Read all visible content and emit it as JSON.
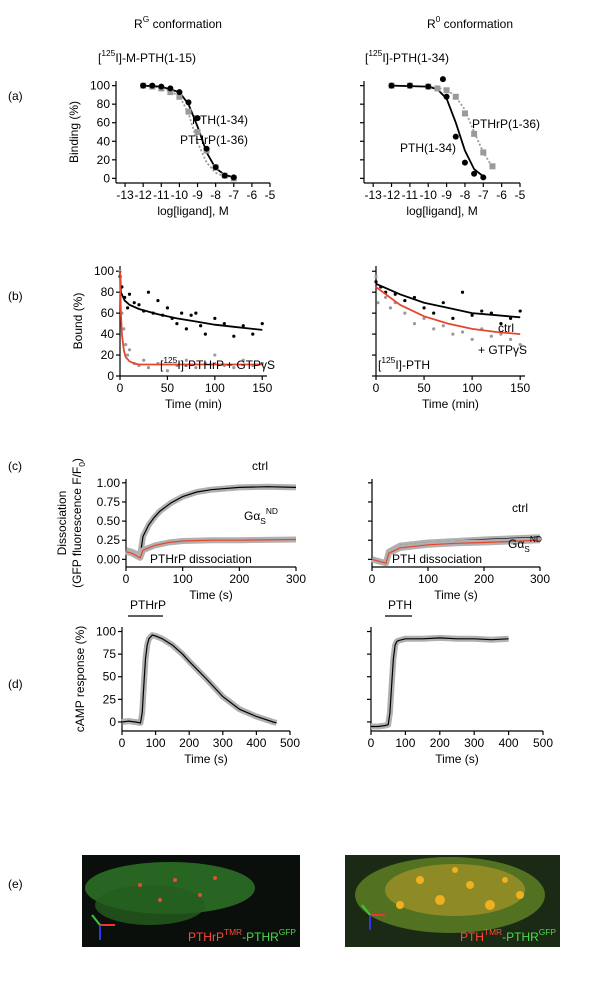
{
  "panel_labels": [
    "(a)",
    "(b)",
    "(c)",
    "(d)",
    "(e)"
  ],
  "column_titles": [
    [
      "R",
      "G",
      " conformation"
    ],
    [
      "R",
      "0",
      " conformation"
    ]
  ],
  "chart_data": [
    {
      "type": "scatter",
      "subtitle": [
        "[",
        "125",
        "I]-M-PTH(1-15)"
      ],
      "xlabel": "log[ligand], M",
      "ylabel": "Binding (%)",
      "xlim": [
        -13.5,
        -5
      ],
      "ylim": [
        -5,
        105
      ],
      "xticks": [
        -13,
        -12,
        -11,
        -10,
        -9,
        -8,
        -7,
        -6,
        -5
      ],
      "yticks": [
        0,
        20,
        40,
        60,
        80,
        100
      ],
      "annotations": [
        {
          "text": "PTH(1-34)",
          "color": "#000000"
        },
        {
          "text": "PTHrP(1-36)",
          "color": "#9a9a9a"
        }
      ],
      "series": [
        {
          "style": "dotted-line",
          "color": "#9a9a9a",
          "x": [
            -12,
            -11,
            -10,
            -9.5,
            -9,
            -8.5,
            -8,
            -7.5,
            -7
          ],
          "values": [
            100,
            98,
            89,
            70,
            39,
            17,
            6,
            2,
            1
          ]
        },
        {
          "style": "line",
          "color": "#000000",
          "x": [
            -12,
            -11,
            -10,
            -9.5,
            -9,
            -8.5,
            -8,
            -7.5,
            -7
          ],
          "values": [
            100,
            99,
            93,
            80,
            56,
            28,
            11,
            4,
            1
          ]
        },
        {
          "style": "squares",
          "color": "#9a9a9a",
          "x": [
            -12,
            -11.5,
            -11,
            -10.5,
            -10,
            -9.5,
            -9,
            -8.5,
            -8,
            -7.5,
            -7
          ],
          "values": [
            100,
            99,
            97,
            93,
            88,
            72,
            50,
            30,
            12,
            3,
            0
          ]
        },
        {
          "style": "circles",
          "color": "#000000",
          "x": [
            -12,
            -11.5,
            -11,
            -10.5,
            -10,
            -9.5,
            -9,
            -8.5,
            -8,
            -7.5,
            -7
          ],
          "values": [
            100,
            100,
            99,
            97,
            93,
            82,
            65,
            32,
            12,
            3,
            1
          ]
        }
      ]
    },
    {
      "type": "scatter",
      "subtitle": [
        "[",
        "125",
        "I]-PTH(1-34)"
      ],
      "xlabel": "log[ligand], M",
      "ytick_labels": false,
      "xlim": [
        -13.5,
        -5
      ],
      "ylim": [
        -5,
        105
      ],
      "xticks": [
        -13,
        -12,
        -11,
        -10,
        -9,
        -8,
        -7,
        -6,
        -5
      ],
      "yticks": [
        0,
        20,
        40,
        60,
        80,
        100
      ],
      "annotations": [
        {
          "text": "PTHrP(1-36)",
          "color": "#9a9a9a"
        },
        {
          "text": "PTH(1-34)",
          "color": "#000000"
        }
      ],
      "series": [
        {
          "style": "dotted-line",
          "color": "#9a9a9a",
          "x": [
            -12,
            -10,
            -9,
            -8.5,
            -8,
            -7.5,
            -7,
            -6.5
          ],
          "values": [
            100,
            99,
            96,
            88,
            74,
            50,
            28,
            12
          ]
        },
        {
          "style": "line",
          "color": "#000000",
          "x": [
            -12,
            -10,
            -9.5,
            -9,
            -8.5,
            -8,
            -7.5,
            -7
          ],
          "values": [
            100,
            99,
            96,
            86,
            60,
            30,
            10,
            2
          ]
        },
        {
          "style": "squares",
          "color": "#9a9a9a",
          "x": [
            -12,
            -11,
            -10,
            -9.5,
            -9,
            -8.5,
            -8,
            -7.5,
            -7,
            -6.5
          ],
          "values": [
            100,
            100,
            99,
            97,
            95,
            88,
            70,
            48,
            28,
            13
          ]
        },
        {
          "style": "circles",
          "color": "#000000",
          "x": [
            -12,
            -11,
            -10,
            -9.2,
            -9,
            -8.5,
            -8,
            -7.5,
            -7
          ],
          "values": [
            100,
            100,
            99,
            107,
            88,
            45,
            17,
            5,
            1
          ]
        }
      ]
    },
    {
      "type": "scatter",
      "xlabel": "Time (min)",
      "ylabel": "Bound (%)",
      "xlim": [
        0,
        155
      ],
      "ylim": [
        0,
        105
      ],
      "xticks": [
        0,
        50,
        100,
        150
      ],
      "yticks": [
        0,
        20,
        40,
        60,
        80,
        100
      ],
      "annotations": [
        {
          "text": [
            "[",
            "125",
            "I]-PTHrP"
          ],
          "color": "#000000"
        },
        {
          "text": "+ GTPγS",
          "color": "#9a9a9a"
        }
      ],
      "series": [
        {
          "style": "dots",
          "color": "#9a9a9a",
          "x": [
            0,
            2,
            4,
            6,
            8,
            10,
            15,
            20,
            25,
            30,
            40,
            50,
            60,
            70,
            80,
            90,
            100,
            110,
            120,
            130,
            140,
            150
          ],
          "values": [
            100,
            60,
            45,
            30,
            20,
            25,
            12,
            10,
            15,
            8,
            12,
            5,
            10,
            15,
            8,
            12,
            20,
            10,
            8,
            15,
            10,
            12
          ]
        },
        {
          "style": "dots",
          "color": "#000000",
          "x": [
            0,
            2,
            5,
            8,
            10,
            15,
            20,
            25,
            30,
            35,
            40,
            45,
            50,
            55,
            60,
            65,
            70,
            75,
            80,
            85,
            90,
            100,
            110,
            120,
            130,
            140,
            150
          ],
          "values": [
            95,
            85,
            75,
            65,
            78,
            70,
            68,
            62,
            80,
            60,
            72,
            58,
            65,
            55,
            50,
            60,
            45,
            58,
            60,
            48,
            40,
            55,
            50,
            38,
            48,
            40,
            50
          ]
        },
        {
          "style": "line",
          "color": "#000000",
          "x": [
            0,
            1,
            5,
            10,
            20,
            40,
            60,
            80,
            100,
            120,
            150
          ],
          "values": [
            100,
            80,
            72,
            68,
            64,
            59,
            55,
            52,
            49,
            47,
            44
          ]
        },
        {
          "style": "line",
          "color": "#e8452c",
          "x": [
            0,
            1,
            2,
            4,
            6,
            10,
            15,
            20,
            30,
            50,
            100,
            150
          ],
          "values": [
            100,
            60,
            40,
            25,
            18,
            14,
            12,
            11,
            11,
            11,
            11,
            11
          ]
        }
      ]
    },
    {
      "type": "scatter",
      "xlabel": "Time (min)",
      "ytick_labels": false,
      "xlim": [
        0,
        155
      ],
      "ylim": [
        0,
        105
      ],
      "xticks": [
        0,
        50,
        100,
        150
      ],
      "yticks": [
        0,
        20,
        40,
        60,
        80,
        100
      ],
      "annotations": [
        {
          "text": "ctrl",
          "color": "#000000"
        },
        {
          "text": "+ GTPγS",
          "color": "#e8452c"
        },
        {
          "text": [
            "[",
            "125",
            "I]-PTH"
          ],
          "color": "#000000"
        }
      ],
      "series": [
        {
          "style": "dots",
          "color": "#9a9a9a",
          "x": [
            0,
            2,
            5,
            10,
            15,
            20,
            30,
            40,
            50,
            60,
            70,
            80,
            90,
            100,
            110,
            120,
            130,
            140,
            150
          ],
          "values": [
            95,
            70,
            85,
            75,
            65,
            70,
            60,
            50,
            55,
            45,
            48,
            40,
            42,
            35,
            45,
            38,
            40,
            35,
            30
          ]
        },
        {
          "style": "dots",
          "color": "#000000",
          "x": [
            0,
            5,
            10,
            20,
            30,
            40,
            50,
            60,
            70,
            80,
            90,
            100,
            110,
            120,
            130,
            140,
            150
          ],
          "values": [
            90,
            85,
            80,
            78,
            72,
            75,
            65,
            60,
            70,
            55,
            80,
            58,
            62,
            60,
            50,
            55,
            62
          ]
        },
        {
          "style": "line",
          "color": "#000000",
          "x": [
            0,
            25,
            50,
            75,
            100,
            125,
            150
          ],
          "values": [
            88,
            78,
            70,
            65,
            60,
            58,
            56
          ]
        },
        {
          "style": "line",
          "color": "#e8452c",
          "x": [
            0,
            25,
            50,
            75,
            100,
            125,
            150
          ],
          "values": [
            85,
            68,
            57,
            50,
            45,
            42,
            40
          ]
        }
      ]
    },
    {
      "type": "scatter",
      "xlabel": "Time (s)",
      "ylabel": [
        "Dissociation"
      ],
      "ylabel2": [
        "(GFP fluorescence F/F",
        "0",
        ")"
      ],
      "xlim": [
        0,
        300
      ],
      "ylim": [
        -0.1,
        1.05
      ],
      "xticks": [
        0,
        100,
        200,
        300
      ],
      "yticks": [
        {
          "value": 0,
          "label": "0.00"
        },
        {
          "value": 0.25,
          "label": "0.25"
        },
        {
          "value": 0.5,
          "label": "0.50"
        },
        {
          "value": 0.75,
          "label": "0.75"
        },
        {
          "value": 1,
          "label": "1.00"
        }
      ],
      "annotations": [
        {
          "text": "ctrl",
          "color": "#000000"
        },
        {
          "text": [
            "Gα",
            "S",
            "ND"
          ],
          "color": "#e8452c"
        },
        {
          "text": "PTHrP dissociation",
          "color": "#000000"
        }
      ],
      "series": [
        {
          "style": "band-line",
          "color": "#000000",
          "x": [
            0,
            10,
            25,
            30,
            40,
            50,
            60,
            80,
            100,
            125,
            150,
            200,
            250,
            300
          ],
          "values": [
            0.12,
            0.1,
            0.05,
            0.3,
            0.45,
            0.55,
            0.63,
            0.74,
            0.82,
            0.88,
            0.91,
            0.94,
            0.95,
            0.94
          ]
        },
        {
          "style": "band-line",
          "color": "#e8452c",
          "x": [
            0,
            10,
            25,
            30,
            50,
            75,
            100,
            150,
            200,
            300
          ],
          "values": [
            0.1,
            0.08,
            0.02,
            0.12,
            0.18,
            0.22,
            0.24,
            0.25,
            0.25,
            0.26
          ]
        }
      ]
    },
    {
      "type": "scatter",
      "xlabel": "Time (s)",
      "ytick_labels": false,
      "xlim": [
        0,
        300
      ],
      "ylim": [
        -0.1,
        1.05
      ],
      "xticks": [
        0,
        100,
        200,
        300
      ],
      "yticks": [
        0,
        0.25,
        0.5,
        0.75,
        1
      ],
      "annotations": [
        {
          "text": "ctrl",
          "color": "#000000"
        },
        {
          "text": [
            "Gα",
            "S",
            "ND"
          ],
          "color": "#e8452c"
        },
        {
          "text": "PTH dissociation",
          "color": "#000000"
        }
      ],
      "series": [
        {
          "style": "band-line",
          "color": "#000000",
          "x": [
            0,
            25,
            30,
            50,
            100,
            150,
            200,
            300
          ],
          "values": [
            0,
            -0.05,
            0.1,
            0.18,
            0.22,
            0.24,
            0.26,
            0.29
          ]
        },
        {
          "style": "band-line",
          "color": "#e8452c",
          "x": [
            0,
            25,
            30,
            50,
            100,
            150,
            200,
            300
          ],
          "values": [
            0,
            -0.05,
            0.08,
            0.15,
            0.19,
            0.21,
            0.22,
            0.25
          ]
        }
      ]
    },
    {
      "type": "scatter",
      "xlabel": "Time (s)",
      "ylabel": [
        "cAMP response (%)"
      ],
      "xlim": [
        0,
        500
      ],
      "ylim": [
        -10,
        105
      ],
      "xticks": [
        0,
        100,
        200,
        300,
        400,
        500
      ],
      "yticks": [
        0,
        25,
        50,
        75,
        100
      ],
      "annotations": [
        {
          "text": "PTHrP",
          "color": "#000000"
        }
      ],
      "series": [
        {
          "style": "band-line",
          "color": "#000000",
          "x": [
            0,
            20,
            40,
            55,
            60,
            65,
            70,
            75,
            80,
            90,
            100,
            120,
            150,
            180,
            200,
            250,
            300,
            350,
            400,
            450,
            460
          ],
          "values": [
            0,
            1,
            0,
            -1,
            10,
            40,
            70,
            85,
            92,
            96,
            95,
            92,
            85,
            75,
            67,
            48,
            28,
            14,
            6,
            0,
            -1
          ]
        }
      ]
    },
    {
      "type": "scatter",
      "xlabel": "Time (s)",
      "ytick_labels": false,
      "xlim": [
        0,
        500
      ],
      "ylim": [
        -10,
        105
      ],
      "xticks": [
        0,
        100,
        200,
        300,
        400,
        500
      ],
      "yticks": [
        0,
        25,
        50,
        75,
        100
      ],
      "annotations": [
        {
          "text": "PTH",
          "color": "#000000"
        }
      ],
      "series": [
        {
          "style": "band-line",
          "color": "#000000",
          "x": [
            0,
            20,
            40,
            50,
            55,
            60,
            65,
            70,
            75,
            80,
            90,
            100,
            150,
            200,
            250,
            300,
            350,
            400
          ],
          "values": [
            -5,
            -5,
            -4,
            -3,
            10,
            40,
            70,
            85,
            89,
            90,
            91,
            92,
            92,
            93,
            92,
            92,
            91,
            92
          ]
        }
      ]
    }
  ],
  "images": [
    {
      "label": [
        "PTHrP",
        "TMR",
        "-PTHR",
        "GFP"
      ]
    },
    {
      "label": [
        "PTH",
        "TMR",
        "-PTHR",
        "GFP"
      ]
    }
  ]
}
